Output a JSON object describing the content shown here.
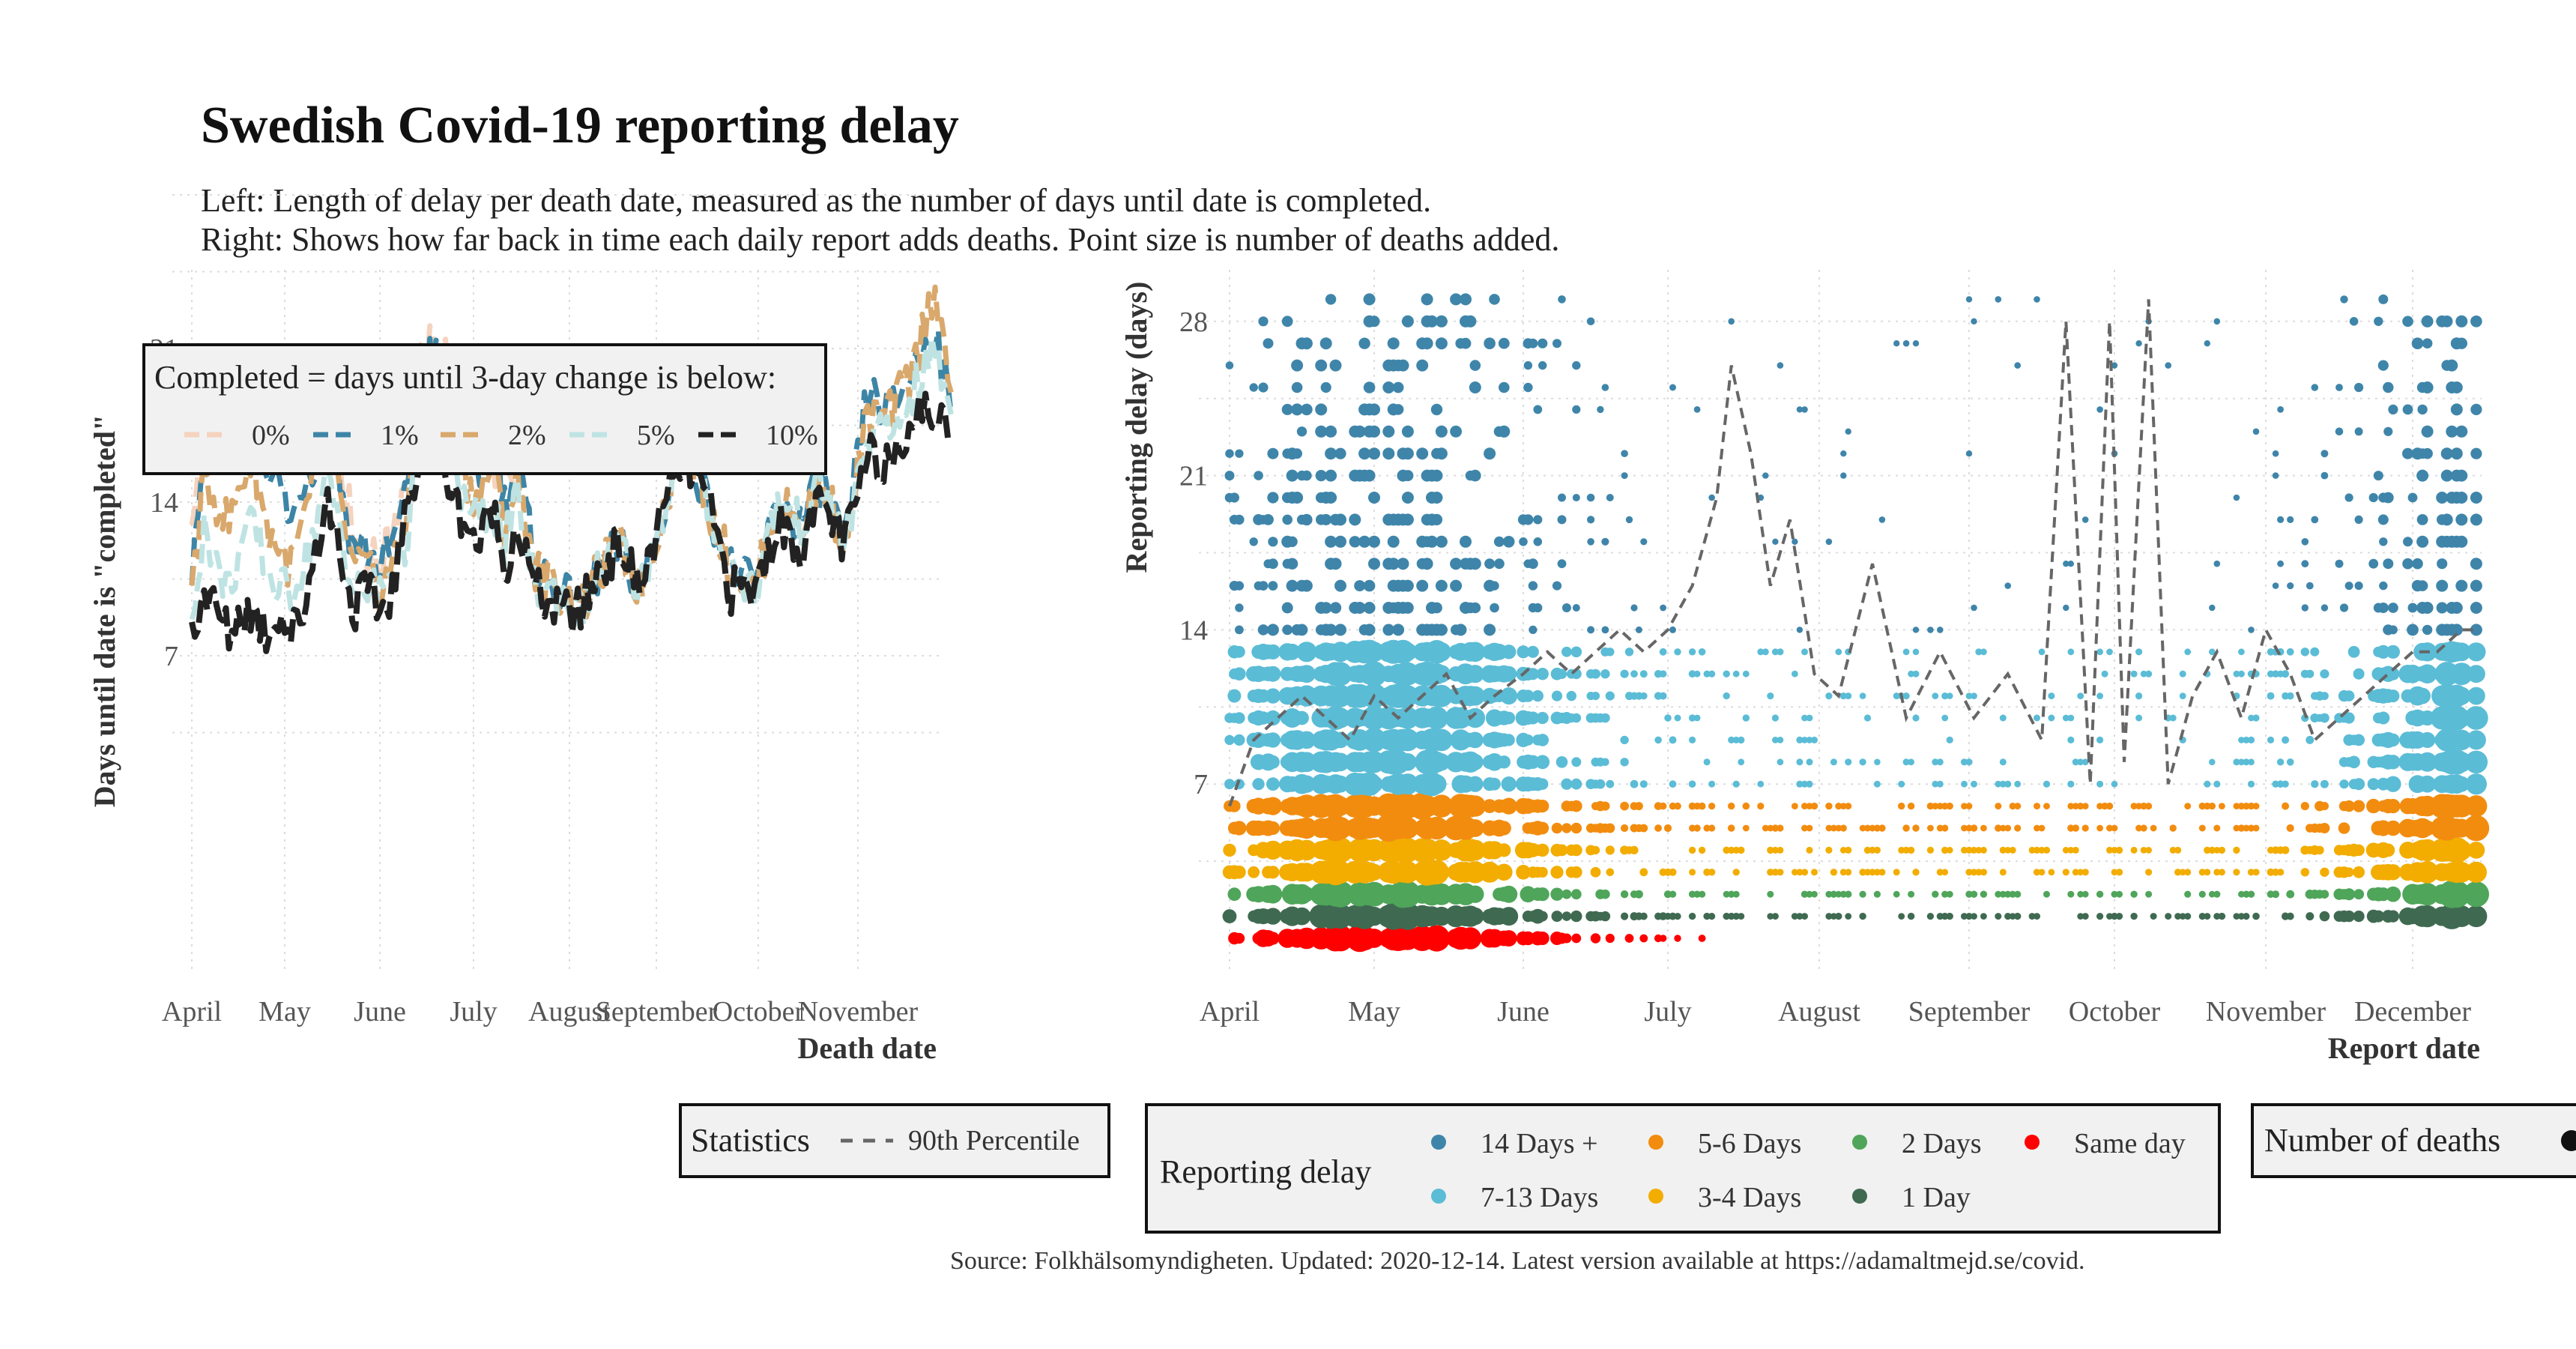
{
  "title": "Swedish Covid-19 reporting delay",
  "subtitle_lines": [
    "Left: Length of delay per death date, measured as the number of days until date is completed.",
    "Right: Shows how far back in time each daily report adds deaths. Point size is number of deaths added."
  ],
  "caption": "Source: Folkhälsomyndigheten. Updated: 2020-12-14. Latest version available at https://adamaltmejd.se/covid.",
  "chart_data": [
    {
      "type": "line",
      "xlabel": "Death date",
      "ylabel": "Days until date is \"completed\"",
      "x_tick_labels": [
        "April",
        "May",
        "June",
        "July",
        "August",
        "September",
        "October",
        "November"
      ],
      "y_ticks": [
        7,
        14,
        21
      ],
      "ylim": [
        0,
        29
      ],
      "grid": true,
      "legend": {
        "title": "Completed = days until 3-day change is below:",
        "placement": "top-left",
        "entries": [
          {
            "label": "0%",
            "color": "#f5d3be"
          },
          {
            "label": "1%",
            "color": "#3d85a6"
          },
          {
            "label": "2%",
            "color": "#d9a86c"
          },
          {
            "label": "5%",
            "color": "#bfe3e3"
          },
          {
            "label": "10%",
            "color": "#222222"
          }
        ]
      },
      "series": [
        {
          "name": "0%",
          "color": "#f5d3be",
          "dash": "dashed",
          "x": [
            "04-01",
            "04-05",
            "04-09",
            "04-13",
            "04-17",
            "04-21",
            "04-25",
            "04-29",
            "05-03",
            "05-07",
            "05-11",
            "05-15",
            "05-19",
            "05-23",
            "05-27",
            "06-01",
            "06-05",
            "06-09",
            "06-13",
            "06-17",
            "06-21",
            "06-25",
            "06-29",
            "07-03",
            "07-07",
            "07-11",
            "07-15"
          ],
          "y": [
            12,
            18,
            19,
            19,
            20,
            19,
            18,
            17,
            15,
            16,
            18,
            20,
            16,
            13,
            12,
            11,
            13,
            15,
            20,
            21,
            21,
            20,
            18,
            17,
            16,
            15,
            14
          ]
        },
        {
          "name": "1%",
          "color": "#3d85a6",
          "dash": "dashed",
          "x": [
            "04-01",
            "04-05",
            "04-09",
            "04-13",
            "04-17",
            "04-21",
            "04-25",
            "04-29",
            "05-03",
            "05-07",
            "05-11",
            "05-15",
            "05-19",
            "05-23",
            "05-27",
            "06-01",
            "06-05",
            "06-09",
            "06-13",
            "06-17",
            "06-21",
            "06-25",
            "06-29",
            "07-03",
            "07-07",
            "07-11",
            "07-15",
            "07-21",
            "07-28",
            "08-05",
            "08-12",
            "08-19",
            "08-26",
            "09-02",
            "09-09",
            "09-16",
            "09-23",
            "09-30",
            "10-07",
            "10-14",
            "10-21",
            "10-28",
            "11-04",
            "11-11",
            "11-18",
            "11-25",
            "11-30"
          ],
          "y": [
            11,
            16,
            17,
            17,
            17,
            18,
            16,
            15,
            13,
            15,
            16,
            19,
            15,
            12,
            12,
            11,
            12,
            14,
            19,
            21,
            20,
            18,
            16,
            15,
            18,
            14,
            16,
            11,
            10,
            9,
            11,
            12,
            10,
            13,
            17,
            14,
            11,
            10,
            14,
            13,
            15,
            12,
            19,
            18,
            20,
            22,
            18
          ]
        },
        {
          "name": "2%",
          "color": "#d9a86c",
          "dash": "dashed",
          "x": [
            "04-01",
            "04-05",
            "04-09",
            "04-13",
            "04-17",
            "04-21",
            "04-25",
            "04-29",
            "05-03",
            "05-07",
            "05-11",
            "05-15",
            "05-19",
            "05-23",
            "05-27",
            "06-01",
            "06-05",
            "06-09",
            "06-13",
            "06-17",
            "06-21",
            "06-25",
            "06-29",
            "07-03",
            "07-07",
            "07-11",
            "07-15",
            "07-21",
            "07-28",
            "08-05",
            "08-12",
            "08-19",
            "08-26",
            "09-02",
            "09-09",
            "09-16",
            "09-23",
            "09-30",
            "10-07",
            "10-14",
            "10-21",
            "10-28",
            "11-04",
            "11-11",
            "11-18",
            "11-25",
            "11-30"
          ],
          "y": [
            10,
            15,
            14,
            13,
            15,
            16,
            13,
            12,
            11,
            13,
            15,
            17,
            14,
            11,
            11,
            10,
            11,
            13,
            18,
            20,
            19,
            17,
            15,
            14,
            16,
            13,
            15,
            11,
            10,
            9,
            11,
            12,
            10,
            13,
            17,
            14,
            11,
            10,
            14,
            13,
            15,
            12,
            18,
            18,
            20,
            24,
            19
          ]
        },
        {
          "name": "5%",
          "color": "#bfe3e3",
          "dash": "dashed",
          "x": [
            "04-01",
            "04-05",
            "04-09",
            "04-13",
            "04-17",
            "04-21",
            "04-25",
            "04-29",
            "05-03",
            "05-07",
            "05-11",
            "05-15",
            "05-19",
            "05-23",
            "05-27",
            "06-01",
            "06-05",
            "06-09",
            "06-13",
            "06-17",
            "06-21",
            "06-25",
            "06-29",
            "07-03",
            "07-07",
            "07-11",
            "07-15",
            "07-21",
            "07-28",
            "08-05",
            "08-12",
            "08-19",
            "08-26",
            "09-02",
            "09-09",
            "09-16",
            "09-23",
            "09-30",
            "10-07",
            "10-14",
            "10-21",
            "10-28",
            "11-04",
            "11-11",
            "11-18",
            "11-25",
            "11-30"
          ],
          "y": [
            9,
            13,
            11,
            10,
            12,
            13,
            11,
            10,
            10,
            11,
            13,
            15,
            13,
            10,
            10,
            10,
            11,
            12,
            16,
            17,
            17,
            15,
            14,
            13,
            14,
            12,
            14,
            10,
            10,
            9,
            11,
            12,
            10,
            13,
            17,
            14,
            11,
            10,
            14,
            13,
            15,
            12,
            17,
            17,
            19,
            21,
            18
          ]
        },
        {
          "name": "10%",
          "color": "#222222",
          "dash": "dashed",
          "x": [
            "04-01",
            "04-05",
            "04-09",
            "04-13",
            "04-17",
            "04-21",
            "04-25",
            "04-29",
            "05-03",
            "05-07",
            "05-11",
            "05-15",
            "05-19",
            "05-23",
            "05-27",
            "06-01",
            "06-05",
            "06-09",
            "06-13",
            "06-17",
            "06-21",
            "06-25",
            "06-29",
            "07-03",
            "07-07",
            "07-11",
            "07-15",
            "07-21",
            "07-28",
            "08-05",
            "08-12",
            "08-19",
            "08-26",
            "09-02",
            "09-09",
            "09-16",
            "09-23",
            "09-30",
            "10-07",
            "10-14",
            "10-21",
            "10-28",
            "11-04",
            "11-11",
            "11-18",
            "11-25",
            "11-30"
          ],
          "y": [
            8,
            10,
            9,
            8,
            9,
            9,
            8,
            9,
            8,
            9,
            12,
            14,
            12,
            9,
            10,
            9,
            10,
            13,
            16,
            16,
            16,
            14,
            13,
            12,
            14,
            11,
            13,
            10,
            9,
            9,
            11,
            12,
            10,
            13,
            16,
            14,
            10,
            10,
            13,
            12,
            14,
            12,
            16,
            16,
            18,
            18,
            17
          ]
        }
      ]
    },
    {
      "type": "scatter",
      "xlabel": "Report date",
      "ylabel": "Reporting delay (days)",
      "x_tick_labels": [
        "April",
        "May",
        "June",
        "July",
        "August",
        "September",
        "October",
        "November",
        "December"
      ],
      "y_ticks": [
        7,
        14,
        21,
        28
      ],
      "ylim": [
        0,
        31
      ],
      "grid": true,
      "legend_statistics": {
        "title": "Statistics",
        "entries": [
          {
            "label": "90th Percentile",
            "style": "dashed",
            "color": "#666666"
          }
        ]
      },
      "legend_delay": {
        "title": "Reporting delay",
        "entries": [
          {
            "label": "14 Days +",
            "color": "#3f85aa"
          },
          {
            "label": "7-13 Days",
            "color": "#5bbcd6"
          },
          {
            "label": "5-6 Days",
            "color": "#f28c0f"
          },
          {
            "label": "3-4 Days",
            "color": "#f2ad00"
          },
          {
            "label": "2 Days",
            "color": "#4fa55a"
          },
          {
            "label": "1 Day",
            "color": "#3f6a51"
          },
          {
            "label": "Same day",
            "color": "#ff0000"
          }
        ]
      },
      "legend_size": {
        "title": "Number of deaths"
      },
      "bands": [
        {
          "name": "Same day",
          "color": "#ff0000",
          "y": [
            0
          ],
          "x_range": [
            "04-01",
            "07-10"
          ]
        },
        {
          "name": "1 Day",
          "color": "#3f6a51",
          "y": [
            1
          ],
          "x_range": [
            "04-01",
            "12-14"
          ]
        },
        {
          "name": "2 Days",
          "color": "#4fa55a",
          "y": [
            2
          ],
          "x_range": [
            "04-01",
            "12-14"
          ]
        },
        {
          "name": "3-4 Days",
          "color": "#f2ad00",
          "y": [
            3,
            4
          ],
          "x_range": [
            "04-01",
            "12-14"
          ]
        },
        {
          "name": "5-6 Days",
          "color": "#f28c0f",
          "y": [
            5,
            6
          ],
          "x_range": [
            "04-01",
            "12-14"
          ]
        },
        {
          "name": "7-13 Days",
          "color": "#5bbcd6",
          "y": [
            7,
            8,
            9,
            10,
            11,
            12,
            13
          ],
          "x_range": [
            "04-01",
            "12-14"
          ]
        },
        {
          "name": "14 Days +",
          "color": "#3f85aa",
          "y": [
            14,
            15,
            16,
            17,
            18,
            19,
            20,
            21,
            22,
            23,
            24,
            25,
            26,
            27,
            28,
            29
          ],
          "x_range": [
            "04-01",
            "12-14"
          ]
        }
      ],
      "p90_series": {
        "name": "90th Percentile",
        "x": [
          "04-01",
          "04-06",
          "04-11",
          "04-16",
          "04-21",
          "04-26",
          "05-01",
          "05-06",
          "05-11",
          "05-16",
          "05-21",
          "05-26",
          "06-01",
          "06-06",
          "06-11",
          "06-16",
          "06-21",
          "06-26",
          "07-01",
          "07-06",
          "07-11",
          "07-14",
          "07-18",
          "07-22",
          "07-26",
          "07-31",
          "08-05",
          "08-12",
          "08-19",
          "08-26",
          "09-02",
          "09-09",
          "09-16",
          "09-21",
          "09-26",
          "09-30",
          "10-03",
          "10-08",
          "10-12",
          "10-17",
          "10-22",
          "10-27",
          "11-01",
          "11-06",
          "11-11",
          "11-16",
          "11-21",
          "11-26",
          "12-01",
          "12-06",
          "12-11",
          "12-14"
        ],
        "y": [
          6,
          9,
          10,
          11,
          10,
          9,
          11,
          10,
          11,
          12,
          10,
          11,
          12,
          13,
          12,
          13,
          14,
          13,
          14,
          16,
          20,
          26,
          22,
          16,
          19,
          12,
          11,
          17,
          10,
          13,
          10,
          12,
          9,
          28,
          7,
          28,
          8,
          29,
          7,
          11,
          13,
          10,
          14,
          12,
          9,
          10,
          11,
          12,
          13,
          13,
          14,
          14
        ]
      }
    }
  ]
}
